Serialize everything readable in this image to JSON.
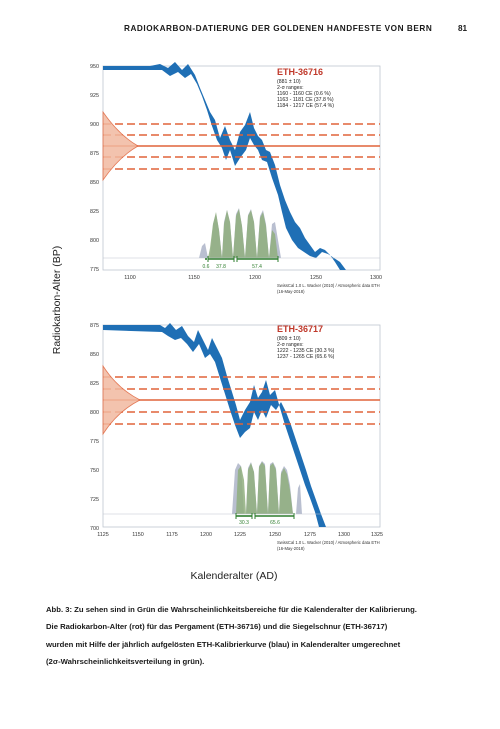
{
  "header": {
    "running_title": "RADIOKARBON-DATIERUNG DER GOLDENEN HANDFESTE VON BERN",
    "page_number": "81"
  },
  "figure": {
    "y_axis_label": "Radiokarbon-Alter (BP)",
    "x_axis_label": "Kalenderalter (AD)",
    "colors": {
      "calibration_curve": "#1f6fb5",
      "radiocarbon_age": "#e0633a",
      "probability": "#8fae7e",
      "probability_shadow": "#b9bfd0",
      "range_bar": "#2e7d2e"
    },
    "panels": [
      {
        "sample_id": "ETH-36716",
        "info": [
          "(881 ± 10)",
          "2-σ ranges:",
          "1160 - 1160 CE (0.6 %)",
          "1163 - 1181 CE (37.8 %)",
          "1184 - 1217 CE (57.4 %)"
        ],
        "footer": [
          "SwissCal 1.0 L. Wacker (2010)  /  Atmospheric data ETH",
          "(16-May-2018)"
        ],
        "range_labels": [
          "0.6",
          "37.8",
          "57.4"
        ],
        "y_ticks": [
          "950",
          "925",
          "900",
          "875",
          "850",
          "825",
          "800",
          "775"
        ],
        "x_ticks": [
          "1100",
          "1150",
          "1200",
          "1250",
          "1300"
        ]
      },
      {
        "sample_id": "ETH-36717",
        "info": [
          "(809 ± 10)",
          "2-σ ranges:",
          "1222 - 1235 CE (30.3 %)",
          "1237 - 1265 CE (65.6 %)"
        ],
        "footer": [
          "SwissCal 1.0 L. Wacker (2010)  /  Atmospheric data ETH",
          "(16-May-2018)"
        ],
        "range_labels": [
          "30.3",
          "65.6"
        ],
        "y_ticks": [
          "875",
          "850",
          "825",
          "800",
          "775",
          "750",
          "725",
          "700"
        ],
        "x_ticks": [
          "1125",
          "1150",
          "1175",
          "1200",
          "1225",
          "1250",
          "1275",
          "1300",
          "1325"
        ]
      }
    ]
  },
  "caption": [
    "Abb. 3: Zu sehen sind in Grün die Wahrscheinlichkeitsbereiche für die Kalenderalter der Kalibrierung.",
    "Die Radiokarbon-Alter (rot) für das Pergament (ETH-36716) und die Siegelschnur (ETH-36717)",
    "wurden mit Hilfe der jährlich aufgelösten ETH-Kalibrierkurve (blau) in Kalenderalter umgerechnet",
    "(2σ-Wahrscheinlichkeitsverteilung in grün)."
  ]
}
